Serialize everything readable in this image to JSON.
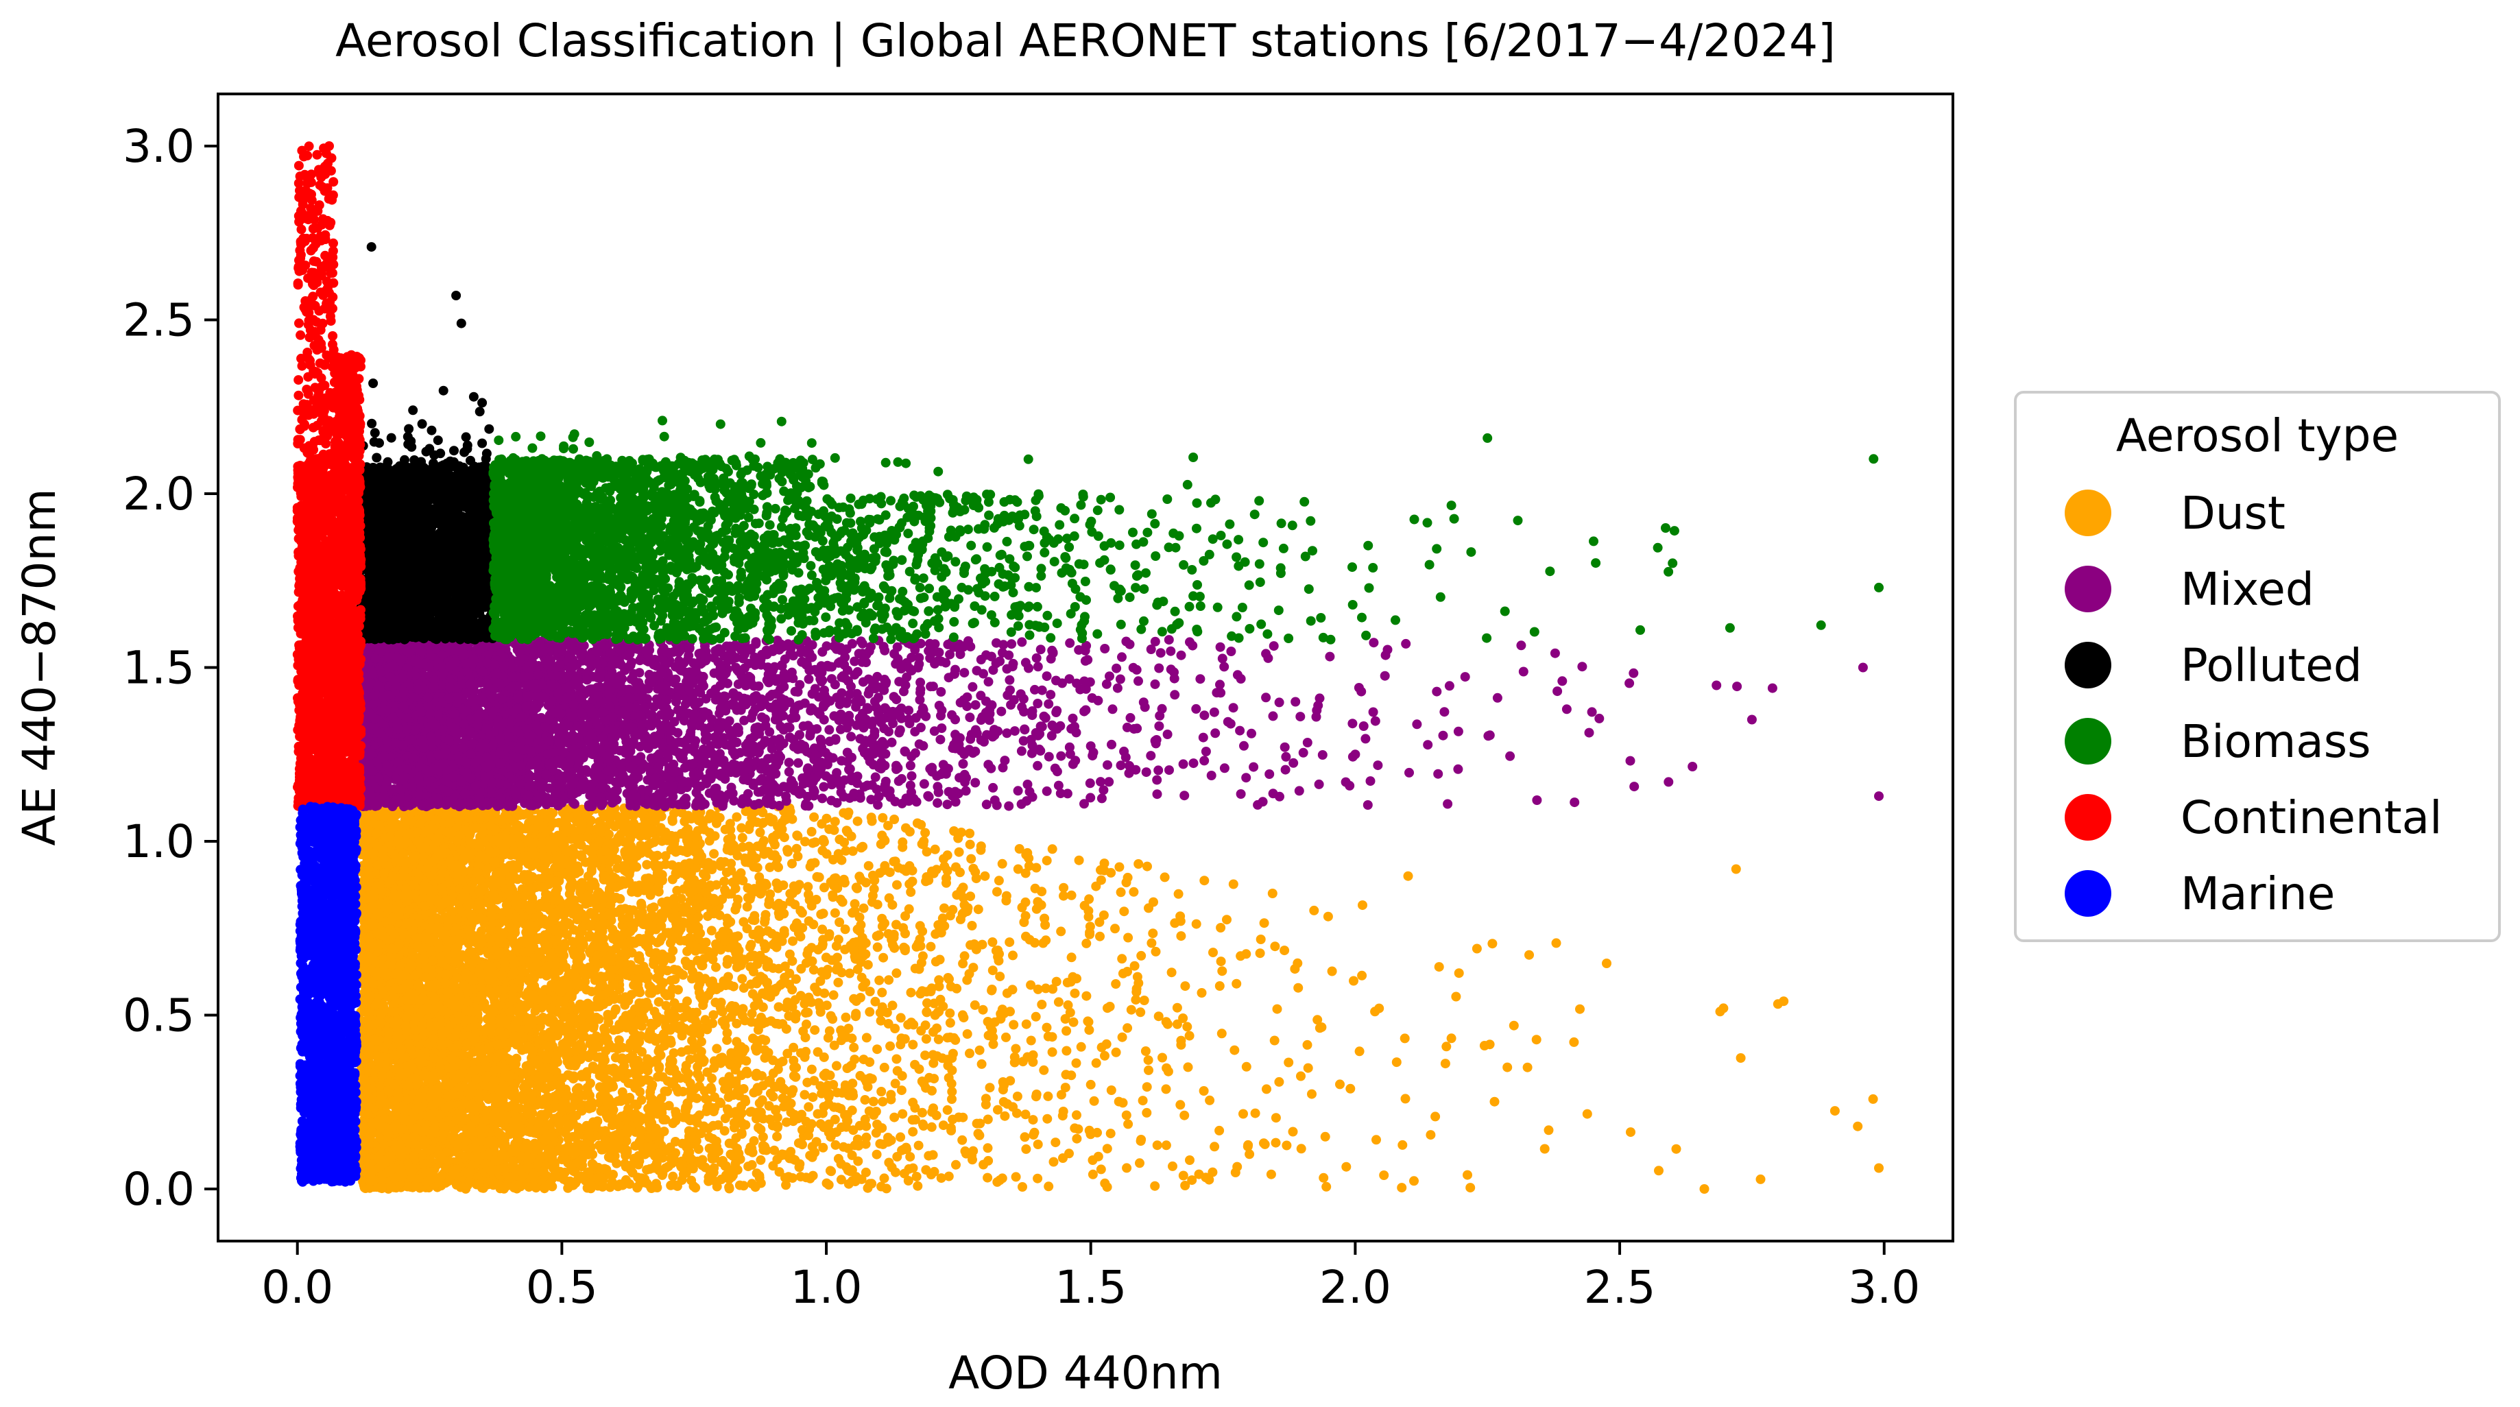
{
  "chart_data": {
    "type": "scatter",
    "title": "Aerosol Classification | Global AERONET stations [6/2017−4/2024]",
    "xlabel": "AOD 440nm",
    "ylabel": "AE 440−870nm",
    "xlim": [
      -0.15,
      3.13
    ],
    "ylim": [
      -0.15,
      3.15
    ],
    "xticks": [
      0.0,
      0.5,
      1.0,
      1.5,
      2.0,
      2.5,
      3.0
    ],
    "xtick_labels": [
      "0.0",
      "0.5",
      "1.0",
      "1.5",
      "2.0",
      "2.5",
      "3.0"
    ],
    "yticks": [
      0.0,
      0.5,
      1.0,
      1.5,
      2.0,
      2.5,
      3.0
    ],
    "ytick_labels": [
      "0.0",
      "0.5",
      "1.0",
      "1.5",
      "2.0",
      "2.5",
      "3.0"
    ],
    "grid": false,
    "legend": {
      "title": "Aerosol type",
      "placement": "outside right"
    },
    "series": [
      {
        "name": "Dust",
        "color": "#ffa500",
        "class_region": {
          "aod": [
            0.12,
            3.0
          ],
          "ae": [
            0.0,
            1.1
          ]
        },
        "points": [
          [
            0.14,
            0.05
          ],
          [
            0.3,
            0.2
          ],
          [
            0.5,
            0.4
          ],
          [
            0.7,
            0.8
          ],
          [
            0.9,
            1.0
          ],
          [
            1.1,
            0.6
          ],
          [
            1.3,
            0.9
          ],
          [
            1.5,
            0.3
          ],
          [
            1.8,
            0.1
          ],
          [
            2.1,
            0.9
          ],
          [
            2.3,
            0.47
          ],
          [
            2.66,
            0.0
          ],
          [
            2.72,
            0.92
          ],
          [
            2.81,
            0.54
          ],
          [
            2.95,
            0.18
          ],
          [
            2.99,
            0.06
          ]
        ]
      },
      {
        "name": "Mixed",
        "color": "#8b0080",
        "class_region": {
          "aod": [
            0.12,
            3.0
          ],
          "ae": [
            1.1,
            1.58
          ]
        },
        "points": [
          [
            0.14,
            1.12
          ],
          [
            0.4,
            1.3
          ],
          [
            0.8,
            1.5
          ],
          [
            1.2,
            1.2
          ],
          [
            1.6,
            1.4
          ],
          [
            2.0,
            1.25
          ],
          [
            2.4,
            1.38
          ],
          [
            2.75,
            1.35
          ],
          [
            2.96,
            1.5
          ],
          [
            2.99,
            1.13
          ]
        ]
      },
      {
        "name": "Polluted",
        "color": "#000000",
        "class_region": {
          "aod": [
            0.12,
            0.37
          ],
          "ae": [
            1.58,
            2.1
          ]
        },
        "points": [
          [
            0.15,
            1.6
          ],
          [
            0.25,
            1.9
          ],
          [
            0.35,
            2.05
          ],
          [
            0.14,
            2.71
          ],
          [
            0.3,
            2.57
          ],
          [
            0.31,
            2.49
          ]
        ]
      },
      {
        "name": "Biomass",
        "color": "#008000",
        "class_region": {
          "aod": [
            0.37,
            3.0
          ],
          "ae": [
            1.58,
            2.25
          ]
        },
        "points": [
          [
            0.4,
            1.6
          ],
          [
            0.6,
            1.9
          ],
          [
            0.8,
            2.2
          ],
          [
            1.2,
            1.8
          ],
          [
            1.7,
            1.9
          ],
          [
            2.25,
            2.16
          ],
          [
            2.6,
            1.8
          ],
          [
            2.98,
            2.1
          ],
          [
            2.99,
            1.73
          ]
        ]
      },
      {
        "name": "Continental",
        "color": "#ff0000",
        "class_region": {
          "aod": [
            0.0,
            0.12
          ],
          "ae": [
            1.1,
            3.0
          ]
        },
        "points": [
          [
            0.01,
            1.2
          ],
          [
            0.05,
            1.8
          ],
          [
            0.08,
            2.1
          ],
          [
            0.02,
            2.9
          ],
          [
            0.06,
            3.0
          ]
        ]
      },
      {
        "name": "Marine",
        "color": "#0000ff",
        "class_region": {
          "aod": [
            0.0,
            0.12
          ],
          "ae": [
            0.0,
            1.1
          ]
        },
        "points": [
          [
            0.01,
            0.02
          ],
          [
            0.05,
            0.5
          ],
          [
            0.1,
            1.05
          ]
        ]
      }
    ]
  }
}
